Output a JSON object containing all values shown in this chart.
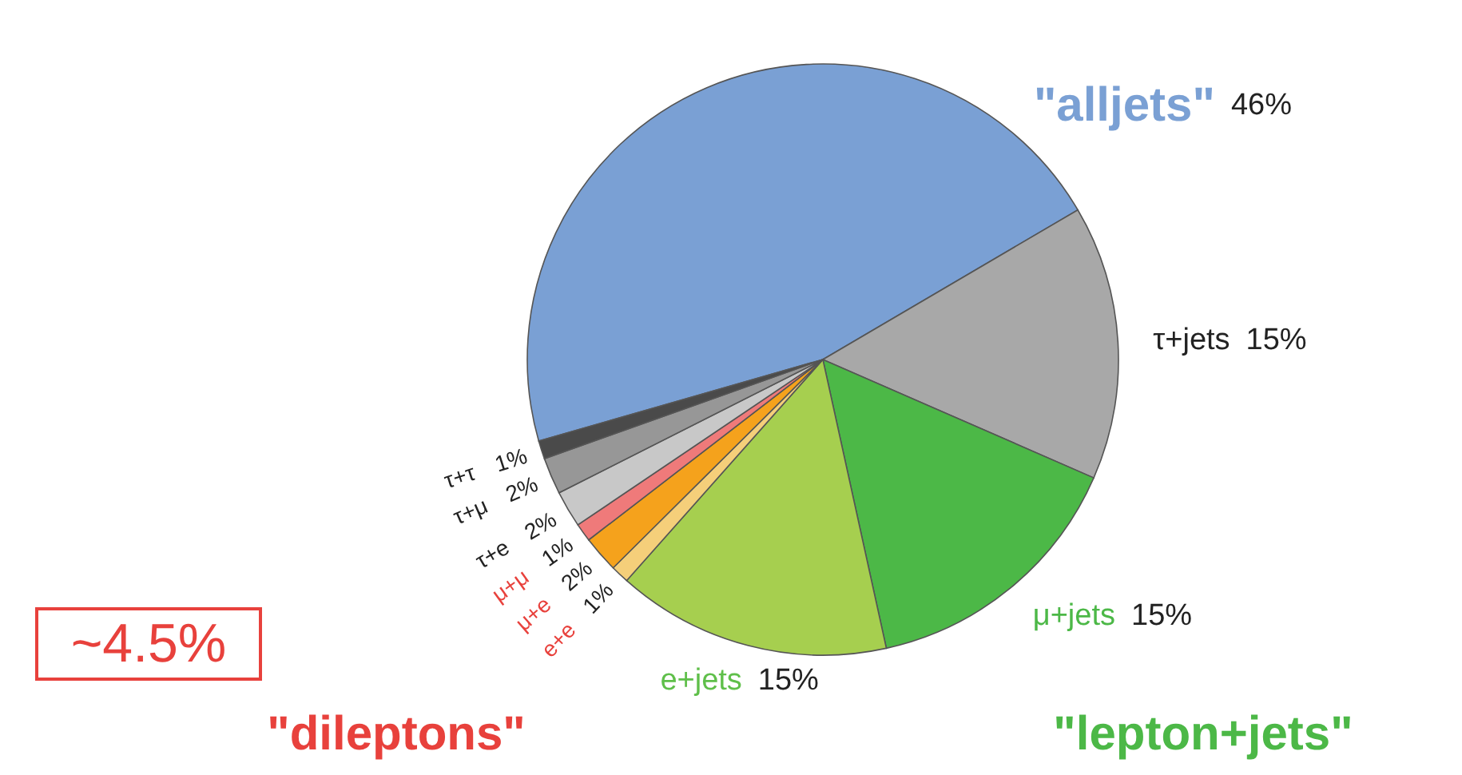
{
  "chart_data": {
    "type": "pie",
    "categories": [
      "\"alljets\"",
      "τ+jets",
      "μ+jets",
      "e+jets",
      "e+e",
      "μ+e",
      "μ+μ",
      "τ+e",
      "τ+μ",
      "τ+τ"
    ],
    "values": [
      46,
      15,
      15,
      15,
      1,
      2,
      1,
      2,
      2,
      1
    ],
    "colors": [
      "#7aa0d4",
      "#a8a8a8",
      "#4cb847",
      "#a6cf4f",
      "#f5cf7a",
      "#f5a21c",
      "#ef7a7a",
      "#c8c8c8",
      "#979797",
      "#4a4a4a"
    ],
    "value_labels": [
      "46%",
      "15%",
      "15%",
      "15%",
      "1%",
      "2%",
      "1%",
      "2%",
      "2%",
      "1%"
    ],
    "annotations": [
      "~4.5%",
      "\"dileptons\"",
      "\"lepton+jets\""
    ]
  }
}
